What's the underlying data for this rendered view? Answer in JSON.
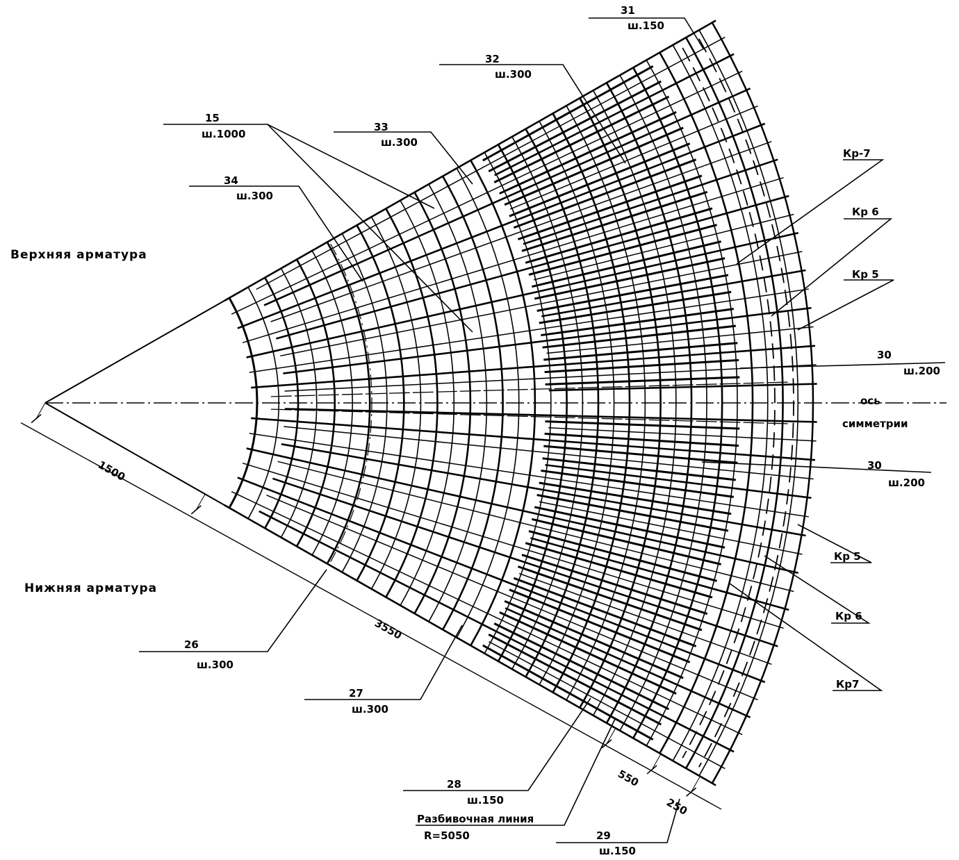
{
  "sections": {
    "upper": "Верхняя арматура",
    "lower": "Нижняя арматура"
  },
  "axis": {
    "line1": "ось",
    "line2": "симметрии"
  },
  "layout_line": {
    "line1": "Разбивочная линия",
    "line2": "R=5050"
  },
  "callouts": [
    {
      "id": "c31",
      "num": "31",
      "step": "ш.150"
    },
    {
      "id": "c32",
      "num": "32",
      "step": "ш.300"
    },
    {
      "id": "c33",
      "num": "33",
      "step": "ш.300"
    },
    {
      "id": "c15",
      "num": "15",
      "step": "ш.1000"
    },
    {
      "id": "c34",
      "num": "34",
      "step": "ш.300"
    },
    {
      "id": "c30a",
      "num": "30",
      "step": "ш.200"
    },
    {
      "id": "c30b",
      "num": "30",
      "step": "ш.200"
    },
    {
      "id": "c26",
      "num": "26",
      "step": "ш.300"
    },
    {
      "id": "c27",
      "num": "27",
      "step": "ш.300"
    },
    {
      "id": "c28",
      "num": "28",
      "step": "ш.150"
    },
    {
      "id": "c29",
      "num": "29",
      "step": "ш.150"
    }
  ],
  "cages": [
    {
      "id": "kr7t",
      "label": "Кр-7"
    },
    {
      "id": "kr6t",
      "label": "Кр 6"
    },
    {
      "id": "kr5t",
      "label": "Кр 5"
    },
    {
      "id": "kr5b",
      "label": "Кр 5"
    },
    {
      "id": "kr6b",
      "label": "Кр 6"
    },
    {
      "id": "kr7b",
      "label": "Кр7"
    }
  ],
  "dimensions": [
    "1500",
    "3550",
    "550",
    "250"
  ]
}
